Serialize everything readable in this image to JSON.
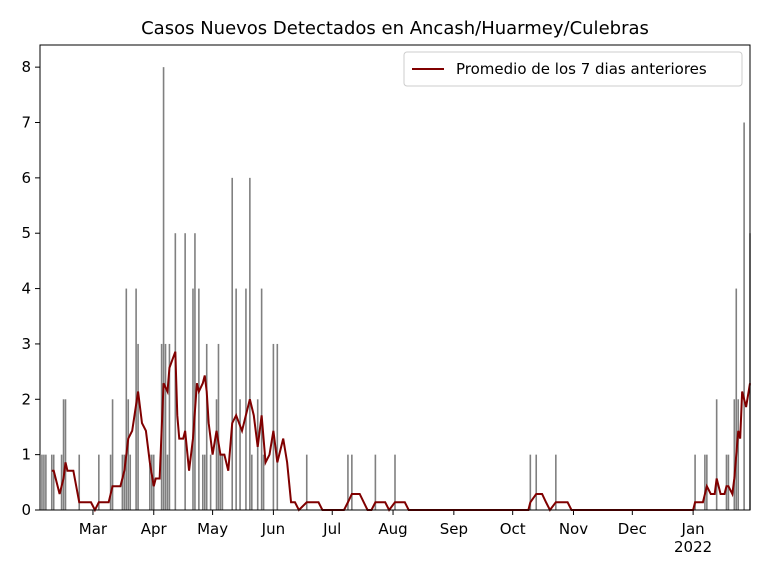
{
  "chart_data": {
    "type": "bar+line",
    "title": "Casos Nuevos Detectados en Ancash/Huarmey/Culebras",
    "xlim": [
      0,
      362
    ],
    "xticks": [
      {
        "value": 27,
        "label": "Mar"
      },
      {
        "value": 58,
        "label": "Apr"
      },
      {
        "value": 88,
        "label": "May"
      },
      {
        "value": 119,
        "label": "Jun"
      },
      {
        "value": 149,
        "label": "Jul"
      },
      {
        "value": 180,
        "label": "Aug"
      },
      {
        "value": 211,
        "label": "Sep"
      },
      {
        "value": 241,
        "label": "Oct"
      },
      {
        "value": 272,
        "label": "Nov"
      },
      {
        "value": 302,
        "label": "Dec"
      },
      {
        "value": 333,
        "label": "Jan\n2022"
      }
    ],
    "ylim": [
      0,
      8.4
    ],
    "yticks": [
      0,
      1,
      2,
      3,
      4,
      5,
      6,
      7,
      8
    ],
    "legend": "upper right",
    "series": [
      {
        "type": "line",
        "name": "Promedio de los 7 dias anteriores",
        "color": "#800000",
        "x": [
          6,
          7,
          9,
          10,
          12,
          13,
          14,
          17,
          20,
          26,
          28,
          30,
          35,
          37,
          41,
          43,
          45,
          47,
          50,
          52,
          54,
          56,
          58,
          59,
          61,
          63,
          65,
          66,
          69,
          70,
          71,
          73,
          74,
          76,
          78,
          80,
          81,
          83,
          84,
          85,
          86,
          88,
          90,
          92,
          94,
          96,
          98,
          100,
          103,
          107,
          109,
          111,
          113,
          115,
          117,
          119,
          121,
          124,
          126,
          128,
          130,
          132,
          136,
          142,
          144,
          155,
          157,
          159,
          163,
          167,
          169,
          171,
          176,
          178,
          181,
          186,
          188,
          249,
          250,
          253,
          256,
          258,
          260,
          263,
          269,
          271,
          333,
          334,
          338,
          340,
          342,
          344,
          345,
          347,
          349,
          350,
          351,
          353,
          354,
          356,
          357,
          358,
          360,
          362
        ],
        "values": [
          0.71,
          0.71,
          0.43,
          0.29,
          0.57,
          0.86,
          0.71,
          0.71,
          0.14,
          0.14,
          0,
          0.14,
          0.14,
          0.43,
          0.43,
          0.71,
          1.29,
          1.43,
          2.14,
          1.57,
          1.43,
          0.86,
          0.43,
          0.57,
          0.57,
          2.29,
          2.14,
          2.57,
          2.86,
          1.71,
          1.29,
          1.29,
          1.43,
          0.71,
          1.29,
          2.29,
          2.14,
          2.29,
          2.43,
          2.14,
          1.57,
          1.0,
          1.43,
          1.0,
          1.0,
          0.71,
          1.57,
          1.71,
          1.43,
          2.0,
          1.71,
          1.14,
          1.71,
          0.86,
          1.0,
          1.43,
          0.86,
          1.29,
          0.86,
          0.14,
          0.14,
          0,
          0.14,
          0.14,
          0,
          0,
          0.14,
          0.29,
          0.29,
          0,
          0,
          0.14,
          0.14,
          0,
          0.14,
          0.14,
          0,
          0,
          0.14,
          0.29,
          0.29,
          0.14,
          0,
          0.14,
          0.14,
          0,
          0,
          0.14,
          0.14,
          0.43,
          0.29,
          0.29,
          0.57,
          0.29,
          0.29,
          0.43,
          0.43,
          0.29,
          0.57,
          1.43,
          1.29,
          2.14,
          1.86,
          2.29
        ]
      },
      {
        "type": "bar",
        "color": "#808080",
        "x": [
          1,
          2,
          3,
          6,
          7,
          11,
          12,
          13,
          20,
          30,
          36,
          37,
          42,
          43,
          44,
          45,
          46,
          49,
          50,
          56,
          57,
          58,
          62,
          63,
          64,
          65,
          66,
          69,
          74,
          78,
          79,
          81,
          83,
          84,
          85,
          87,
          90,
          91,
          92,
          93,
          98,
          100,
          102,
          105,
          107,
          108,
          111,
          113,
          114,
          119,
          121,
          136,
          157,
          159,
          171,
          181,
          250,
          253,
          263,
          334,
          339,
          340,
          345,
          350,
          351,
          354,
          355,
          356,
          359,
          362
        ],
        "values": [
          1,
          1,
          1,
          1,
          1,
          1,
          2,
          2,
          1,
          1,
          1,
          2,
          1,
          1,
          4,
          2,
          1,
          4,
          3,
          1,
          1,
          1,
          3,
          8,
          3,
          1,
          3,
          5,
          5,
          4,
          5,
          4,
          1,
          1,
          3,
          1,
          2,
          3,
          1,
          1,
          6,
          4,
          2,
          4,
          6,
          1,
          2,
          4,
          1,
          3,
          3,
          1,
          1,
          1,
          1,
          1,
          1,
          1,
          1,
          1,
          1,
          1,
          2,
          1,
          1,
          2,
          4,
          2,
          7,
          5
        ]
      }
    ]
  }
}
